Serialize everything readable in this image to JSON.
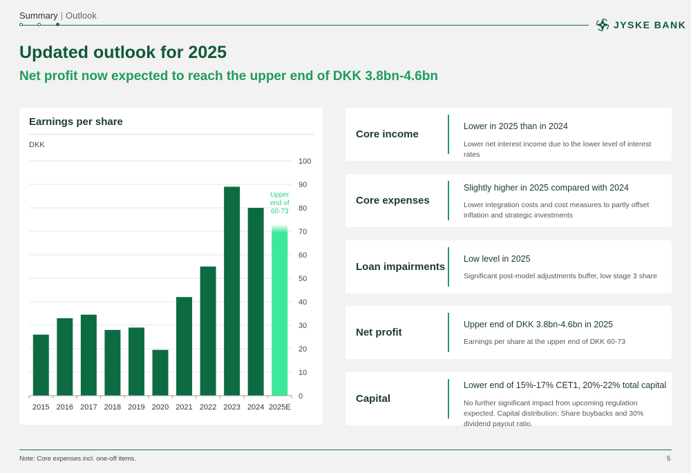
{
  "breadcrumb": {
    "section": "Summary",
    "separator": "|",
    "subsection": "Outlook"
  },
  "logo": {
    "name": "JYSKE BANK",
    "icon": "jyske-bank-logo-icon"
  },
  "title": "Updated outlook for 2025",
  "subtitle": "Net profit now expected to reach the upper end of DKK 3.8bn-4.6bn",
  "chart": {
    "title": "Earnings per share",
    "unit_label": "DKK"
  },
  "chart_data": {
    "type": "bar",
    "title": "Earnings per share",
    "ylabel": "DKK",
    "categories": [
      "2015",
      "2016",
      "2017",
      "2018",
      "2019",
      "2020",
      "2021",
      "2022",
      "2023",
      "2024",
      "2025E"
    ],
    "values": [
      26,
      33,
      34.5,
      28,
      29,
      19.5,
      42,
      55,
      89,
      80,
      67
    ],
    "forecast_range": [
      60,
      73
    ],
    "annotation": "Upper end of 60-73",
    "yticks": [
      0,
      10,
      20,
      30,
      40,
      50,
      60,
      70,
      80,
      90,
      100
    ],
    "ylim": [
      0,
      100
    ],
    "y_axis_position": "right",
    "grid": true,
    "colors": {
      "actual": "#0d6b44",
      "forecast": "#3ee89a",
      "annotation": "#2ecf82"
    }
  },
  "outlook_rows": [
    {
      "label": "Core income",
      "headline": "Lower in 2025 than in 2024",
      "detail": "Lower net interest income due to the lower level of interest rates"
    },
    {
      "label": "Core expenses",
      "headline": "Slightly higher in 2025 compared with 2024",
      "detail": "Lower integration costs and cost measures to partly offset inflation and strategic investments"
    },
    {
      "label": "Loan impairments",
      "headline": "Low level in 2025",
      "detail": "Significant post-model adjustments buffer, low stage 3 share"
    },
    {
      "label": "Net profit",
      "headline": "Upper end of DKK 3.8bn-4.6bn in 2025",
      "detail": "Earnings per share at the upper end of DKK 60-73"
    },
    {
      "label": "Capital",
      "headline": "Lower end of 15%-17% CET1, 20%-22% total capital",
      "detail": "No further significant impact from upcoming regulation expected. Capital distribution: Share buybacks and 30% dividend payout ratio."
    }
  ],
  "footer": {
    "note": "Note: Core expenses incl. one-off items.",
    "page_number": "5"
  }
}
